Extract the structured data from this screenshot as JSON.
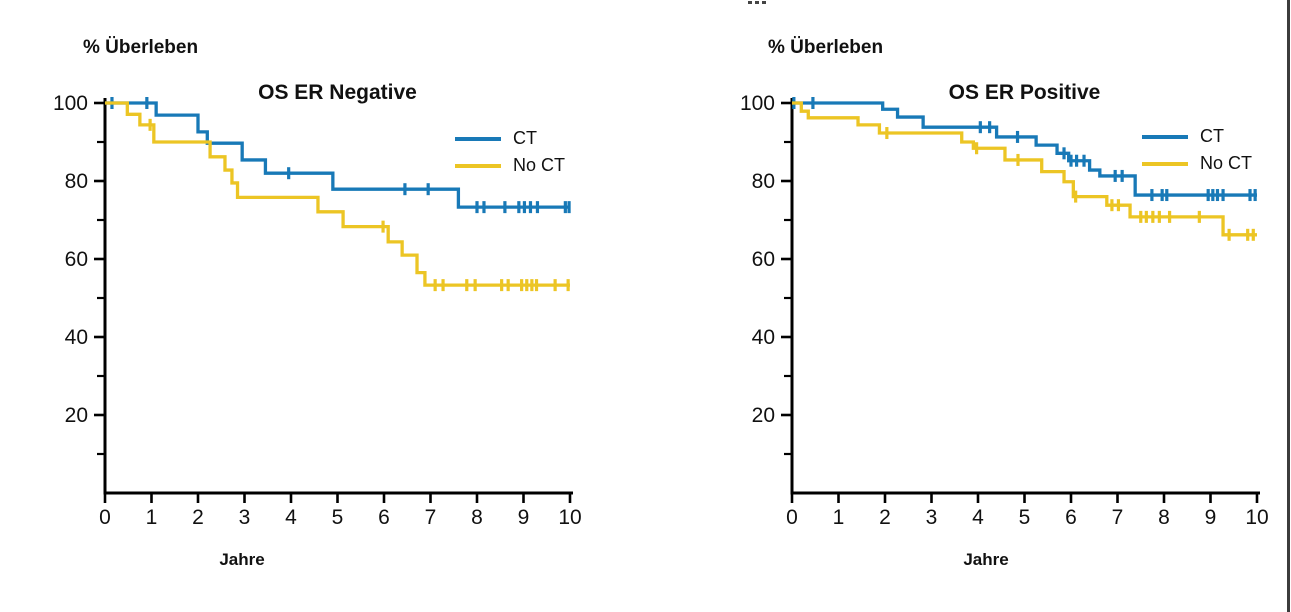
{
  "page": {
    "background": "#ffffff",
    "right_border_color": "#3c3c3c",
    "text_color": "#111111",
    "axis_color": "#000000"
  },
  "chart_data": [
    {
      "type": "line",
      "subtype": "kaplan-meier-step",
      "title": "OS ER Negative",
      "ylabel": "% Überleben",
      "xlabel": "Jahre",
      "xlim": [
        0,
        10
      ],
      "ylim": [
        0,
        100
      ],
      "xticks": [
        0,
        1,
        2,
        3,
        4,
        5,
        6,
        7,
        8,
        9,
        10
      ],
      "yticks": [
        100,
        80,
        60,
        40,
        20
      ],
      "y_minor_ticks": [
        90,
        70,
        50,
        30,
        10
      ],
      "grid": false,
      "legend_position": "upper-right-inside",
      "series": [
        {
          "name": "CT",
          "color": "#1879B7",
          "steps": [
            [
              0,
              100
            ],
            [
              1.1,
              96.9
            ],
            [
              2.0,
              92.6
            ],
            [
              2.2,
              89.7
            ],
            [
              2.95,
              85.4
            ],
            [
              3.45,
              82.0
            ],
            [
              4.9,
              77.9
            ],
            [
              7.6,
              73.3
            ]
          ],
          "end_time": 10,
          "final_value": 73.3,
          "censors": [
            [
              0.15,
              100
            ],
            [
              0.9,
              100
            ],
            [
              3.95,
              82.0
            ],
            [
              6.45,
              77.9
            ],
            [
              6.95,
              77.9
            ],
            [
              8.0,
              73.3
            ],
            [
              8.15,
              73.3
            ],
            [
              8.6,
              73.3
            ],
            [
              8.9,
              73.3
            ],
            [
              9.02,
              73.3
            ],
            [
              9.15,
              73.3
            ],
            [
              9.3,
              73.3
            ],
            [
              9.9,
              73.3
            ],
            [
              9.98,
              73.3
            ]
          ]
        },
        {
          "name": "No CT",
          "color": "#ECC524",
          "steps": [
            [
              0,
              100
            ],
            [
              0.48,
              97.1
            ],
            [
              0.75,
              94.4
            ],
            [
              1.05,
              90.0
            ],
            [
              2.26,
              86.2
            ],
            [
              2.58,
              82.8
            ],
            [
              2.73,
              79.5
            ],
            [
              2.85,
              75.8
            ],
            [
              4.58,
              72.1
            ],
            [
              5.12,
              68.3
            ],
            [
              6.09,
              64.4
            ],
            [
              6.39,
              61.0
            ],
            [
              6.71,
              56.5
            ],
            [
              6.88,
              53.3
            ]
          ],
          "end_time": 10,
          "final_value": 53.3,
          "censors": [
            [
              0.97,
              94.4
            ],
            [
              5.98,
              68.3
            ],
            [
              7.1,
              53.3
            ],
            [
              7.27,
              53.3
            ],
            [
              7.78,
              53.3
            ],
            [
              7.96,
              53.3
            ],
            [
              8.53,
              53.3
            ],
            [
              8.67,
              53.3
            ],
            [
              8.96,
              53.3
            ],
            [
              9.07,
              53.3
            ],
            [
              9.18,
              53.3
            ],
            [
              9.28,
              53.3
            ],
            [
              9.68,
              53.3
            ],
            [
              9.96,
              53.3
            ]
          ]
        }
      ]
    },
    {
      "type": "line",
      "subtype": "kaplan-meier-step",
      "title": "OS ER Positive",
      "ylabel": "% Überleben",
      "xlabel": "Jahre",
      "xlim": [
        0,
        10
      ],
      "ylim": [
        0,
        100
      ],
      "xticks": [
        0,
        1,
        2,
        3,
        4,
        5,
        6,
        7,
        8,
        9,
        10
      ],
      "yticks": [
        100,
        80,
        60,
        40,
        20
      ],
      "y_minor_ticks": [
        90,
        70,
        50,
        30,
        10
      ],
      "grid": false,
      "legend_position": "upper-right-inside",
      "series": [
        {
          "name": "CT",
          "color": "#1879B7",
          "steps": [
            [
              0,
              100
            ],
            [
              1.95,
              98.4
            ],
            [
              2.27,
              96.4
            ],
            [
              2.82,
              93.8
            ],
            [
              4.4,
              91.3
            ],
            [
              5.25,
              89.2
            ],
            [
              5.7,
              87.1
            ],
            [
              5.95,
              85.2
            ],
            [
              6.4,
              82.8
            ],
            [
              6.62,
              81.3
            ],
            [
              7.38,
              76.4
            ]
          ],
          "end_time": 10,
          "final_value": 76.4,
          "censors": [
            [
              0.04,
              100
            ],
            [
              0.45,
              100
            ],
            [
              4.05,
              93.8
            ],
            [
              4.25,
              93.8
            ],
            [
              4.85,
              91.3
            ],
            [
              5.85,
              87.1
            ],
            [
              6.0,
              85.2
            ],
            [
              6.12,
              85.2
            ],
            [
              6.28,
              85.2
            ],
            [
              6.95,
              81.3
            ],
            [
              7.1,
              81.3
            ],
            [
              7.74,
              76.4
            ],
            [
              7.96,
              76.4
            ],
            [
              8.06,
              76.4
            ],
            [
              8.95,
              76.4
            ],
            [
              9.05,
              76.4
            ],
            [
              9.15,
              76.4
            ],
            [
              9.27,
              76.4
            ],
            [
              9.85,
              76.4
            ],
            [
              9.96,
              76.4
            ]
          ]
        },
        {
          "name": "No CT",
          "color": "#ECC524",
          "steps": [
            [
              0,
              100
            ],
            [
              0.2,
              97.9
            ],
            [
              0.35,
              96.2
            ],
            [
              1.42,
              94.4
            ],
            [
              1.88,
              92.3
            ],
            [
              3.65,
              90.0
            ],
            [
              3.9,
              88.4
            ],
            [
              4.58,
              85.4
            ],
            [
              5.37,
              82.4
            ],
            [
              5.85,
              79.8
            ],
            [
              6.05,
              76.0
            ],
            [
              6.77,
              73.8
            ],
            [
              7.27,
              70.8
            ],
            [
              9.27,
              66.2
            ]
          ],
          "end_time": 10,
          "final_value": 66.2,
          "censors": [
            [
              2.04,
              92.3
            ],
            [
              3.97,
              88.4
            ],
            [
              4.86,
              85.4
            ],
            [
              6.1,
              76.0
            ],
            [
              6.88,
              73.8
            ],
            [
              7.02,
              73.8
            ],
            [
              7.5,
              70.8
            ],
            [
              7.62,
              70.8
            ],
            [
              7.76,
              70.8
            ],
            [
              7.9,
              70.8
            ],
            [
              8.12,
              70.8
            ],
            [
              8.76,
              70.8
            ],
            [
              9.4,
              66.2
            ],
            [
              9.8,
              66.2
            ],
            [
              9.92,
              66.2
            ]
          ]
        }
      ]
    }
  ]
}
